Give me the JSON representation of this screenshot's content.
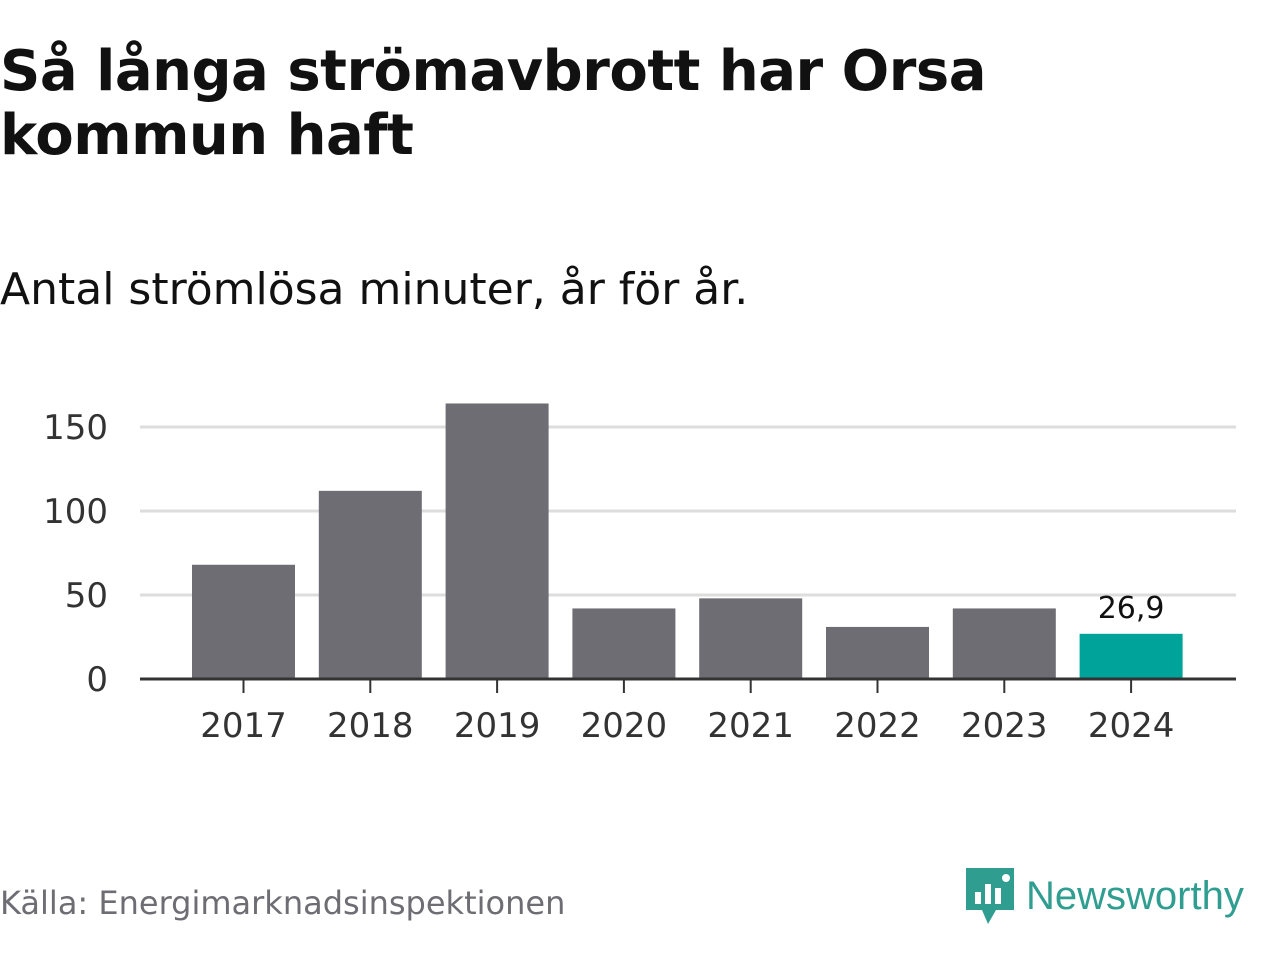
{
  "title": "Så långa strömavbrott har Orsa kommun haft",
  "subtitle": "Antal strömlösa minuter, år för år.",
  "source": "Källa: Energimarknadsinspektionen",
  "brand": {
    "name": "Newsworthy",
    "icon": "newsworthy-logo-icon",
    "color": "#2f9d8f"
  },
  "colors": {
    "bar": "#6e6d73",
    "highlight": "#00a39a",
    "grid": "#dddddd",
    "axis": "#333333"
  },
  "chart_data": {
    "type": "bar",
    "categories": [
      "2017",
      "2018",
      "2019",
      "2020",
      "2021",
      "2022",
      "2023",
      "2024"
    ],
    "values": [
      68,
      112,
      164,
      42,
      48,
      31,
      42,
      26.9
    ],
    "highlight_index": 7,
    "data_labels": [
      {
        "index": 7,
        "text": "26,9"
      }
    ],
    "yticks": [
      0,
      50,
      100,
      150
    ],
    "ylim": [
      0,
      170
    ],
    "grid": true,
    "xlabel": "",
    "ylabel": ""
  }
}
